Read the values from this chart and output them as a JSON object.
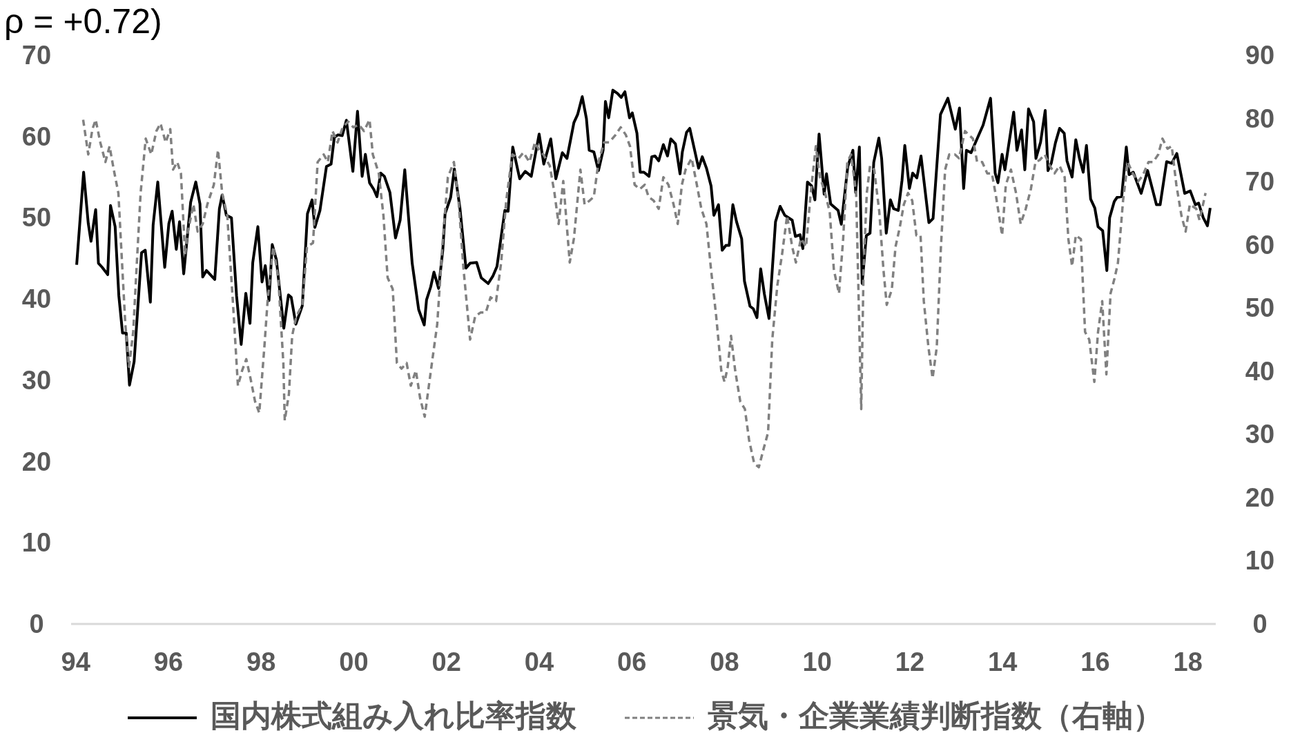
{
  "chart_data": {
    "type": "line",
    "title": "ρ = +0.72)",
    "series": [
      {
        "name": "国内株式組み入れ比率指数",
        "color": "#000000",
        "line_style": "solid",
        "x": [
          1994.02,
          1994.17,
          1994.27,
          1994.33,
          1994.43,
          1994.49,
          1994.57,
          1994.69,
          1994.75,
          1994.85,
          1994.93,
          1995.01,
          1995.09,
          1995.16,
          1995.26,
          1995.42,
          1995.5,
          1995.61,
          1995.67,
          1995.77,
          1995.92,
          1996.01,
          1996.08,
          1996.17,
          1996.24,
          1996.33,
          1996.48,
          1996.59,
          1996.68,
          1996.74,
          1996.82,
          1997.0,
          1997.1,
          1997.16,
          1997.25,
          1997.36,
          1997.47,
          1997.57,
          1997.67,
          1997.76,
          1997.82,
          1997.93,
          1998.02,
          1998.09,
          1998.17,
          1998.24,
          1998.33,
          1998.49,
          1998.59,
          1998.65,
          1998.75,
          1998.89,
          1999.0,
          1999.1,
          1999.16,
          1999.27,
          1999.41,
          1999.51,
          1999.58,
          1999.66,
          1999.75,
          1999.84,
          1999.98,
          2000.08,
          2000.18,
          2000.25,
          2000.34,
          2000.43,
          2000.5,
          2000.58,
          2000.66,
          2000.78,
          2000.9,
          2001.0,
          2001.1,
          2001.26,
          2001.4,
          2001.52,
          2001.57,
          2001.66,
          2001.73,
          2001.83,
          2001.92,
          2001.97,
          2002.09,
          2002.17,
          2002.29,
          2002.42,
          2002.51,
          2002.65,
          2002.75,
          2002.9,
          2003.0,
          2003.09,
          2003.26,
          2003.33,
          2003.43,
          2003.58,
          2003.7,
          2003.83,
          2004.0,
          2004.1,
          2004.25,
          2004.36,
          2004.5,
          2004.6,
          2004.75,
          2004.83,
          2004.93,
          2005.02,
          2005.08,
          2005.18,
          2005.28,
          2005.38,
          2005.43,
          2005.5,
          2005.59,
          2005.69,
          2005.77,
          2005.85,
          2005.95,
          2006.01,
          2006.11,
          2006.18,
          2006.26,
          2006.37,
          2006.43,
          2006.5,
          2006.58,
          2006.68,
          2006.77,
          2006.84,
          2006.94,
          2007.04,
          2007.09,
          2007.18,
          2007.25,
          2007.44,
          2007.52,
          2007.61,
          2007.71,
          2007.77,
          2007.87,
          2007.95,
          2008.03,
          2008.1,
          2008.18,
          2008.26,
          2008.37,
          2008.43,
          2008.55,
          2008.62,
          2008.7,
          2008.78,
          2008.86,
          2008.96,
          2009.1,
          2009.2,
          2009.3,
          2009.46,
          2009.53,
          2009.63,
          2009.69,
          2009.79,
          2009.88,
          2009.95,
          2010.04,
          2010.15,
          2010.2,
          2010.29,
          2010.45,
          2010.52,
          2010.66,
          2010.77,
          2010.83,
          2010.91,
          2010.97,
          2011.06,
          2011.14,
          2011.22,
          2011.33,
          2011.39,
          2011.49,
          2011.58,
          2011.65,
          2011.75,
          2011.83,
          2011.89,
          2011.99,
          2012.06,
          2012.15,
          2012.24,
          2012.41,
          2012.5,
          2012.66,
          2012.82,
          2012.98,
          2013.07,
          2013.16,
          2013.22,
          2013.32,
          2013.48,
          2013.58,
          2013.74,
          2013.84,
          2013.9,
          2013.99,
          2014.05,
          2014.24,
          2014.31,
          2014.41,
          2014.48,
          2014.56,
          2014.67,
          2014.72,
          2014.82,
          2014.92,
          2014.98,
          2015.05,
          2015.14,
          2015.23,
          2015.33,
          2015.39,
          2015.5,
          2015.58,
          2015.66,
          2015.74,
          2015.81,
          2015.9,
          2015.99,
          2016.06,
          2016.16,
          2016.25,
          2016.31,
          2016.41,
          2016.47,
          2016.57,
          2016.67,
          2016.73,
          2016.82,
          2016.99,
          2017.13,
          2017.32,
          2017.4,
          2017.54,
          2017.65,
          2017.76,
          2017.93,
          2018.05,
          2018.16,
          2018.23,
          2018.33,
          2018.42,
          2018.48
        ],
        "values": [
          44.2,
          55.6,
          49.3,
          47.1,
          51.0,
          44.4,
          43.9,
          43.0,
          51.5,
          48.9,
          40.4,
          35.8,
          35.8,
          29.4,
          32.3,
          45.7,
          46.0,
          39.6,
          49.1,
          54.4,
          43.9,
          49.3,
          50.8,
          46.1,
          49.5,
          43.1,
          51.9,
          54.4,
          51.7,
          42.7,
          43.5,
          42.4,
          51.1,
          52.8,
          50.3,
          50.0,
          40.4,
          34.4,
          40.7,
          37.0,
          44.5,
          48.9,
          42.1,
          44.1,
          39.8,
          46.7,
          44.8,
          36.4,
          40.5,
          40.2,
          36.9,
          39.2,
          50.5,
          52.2,
          48.8,
          50.9,
          56.3,
          56.6,
          59.9,
          60.2,
          60.1,
          62.0,
          55.7,
          63.1,
          55.1,
          57.8,
          54.3,
          53.5,
          52.6,
          55.5,
          55.1,
          53.1,
          47.5,
          49.7,
          55.9,
          44.4,
          38.7,
          36.8,
          39.9,
          41.5,
          43.3,
          41.3,
          46.0,
          50.5,
          52.5,
          56.0,
          51.2,
          43.8,
          44.4,
          44.5,
          42.6,
          41.9,
          42.8,
          44.0,
          50.9,
          50.8,
          58.7,
          54.8,
          55.7,
          55.1,
          60.3,
          56.6,
          59.7,
          54.8,
          58.0,
          57.3,
          61.7,
          62.7,
          64.9,
          62.2,
          58.3,
          58.1,
          55.8,
          58.3,
          64.3,
          62.3,
          65.7,
          65.3,
          64.8,
          65.5,
          62.3,
          62.9,
          60.4,
          55.6,
          55.6,
          55.1,
          57.5,
          57.6,
          57.0,
          59.0,
          57.6,
          59.7,
          59.1,
          55.4,
          58.1,
          60.5,
          61.0,
          56.1,
          57.5,
          56.1,
          53.9,
          50.3,
          51.6,
          46.0,
          46.6,
          46.6,
          51.6,
          49.5,
          47.4,
          42.2,
          39.1,
          38.8,
          37.7,
          43.7,
          40.6,
          37.6,
          49.5,
          51.4,
          50.3,
          49.7,
          47.7,
          47.9,
          46.2,
          54.4,
          53.9,
          52.2,
          60.3,
          52.9,
          55.4,
          51.7,
          50.9,
          49.2,
          56.3,
          58.3,
          53.1,
          58.7,
          41.9,
          47.8,
          48.1,
          56.8,
          59.8,
          57.3,
          48.1,
          52.2,
          51.1,
          50.9,
          54.6,
          58.9,
          53.6,
          55.5,
          54.9,
          57.6,
          49.4,
          49.9,
          62.7,
          64.7,
          60.9,
          63.5,
          53.6,
          58.3,
          58.0,
          60.1,
          61.4,
          64.7,
          55.5,
          54.3,
          57.8,
          55.9,
          63.0,
          58.3,
          60.8,
          55.9,
          63.4,
          61.8,
          57.3,
          59.3,
          63.2,
          55.8,
          56.7,
          59.2,
          61.0,
          60.4,
          57.0,
          55.0,
          59.6,
          57.3,
          55.6,
          58.9,
          52.3,
          51.2,
          48.9,
          48.4,
          43.5,
          50.0,
          52.0,
          52.5,
          52.6,
          58.7,
          55.3,
          55.6,
          53.0,
          55.8,
          51.6,
          51.6,
          56.9,
          56.7,
          57.9,
          53.0,
          53.3,
          51.6,
          51.8,
          50.0,
          49.0,
          51.2
        ]
      },
      {
        "name": "景気・企業業績判断指数（右軸）",
        "color": "#808080",
        "line_style": "dashed",
        "axis": "y2",
        "x": [
          1994.16,
          1994.27,
          1994.36,
          1994.43,
          1994.53,
          1994.64,
          1994.73,
          1994.82,
          1994.92,
          1994.99,
          1995.07,
          1995.15,
          1995.24,
          1995.31,
          1995.4,
          1995.51,
          1995.63,
          1995.74,
          1995.83,
          1995.94,
          1996.04,
          1996.1,
          1996.19,
          1996.27,
          1996.36,
          1996.42,
          1996.54,
          1996.63,
          1996.74,
          1996.84,
          1996.98,
          1997.07,
          1997.16,
          1997.27,
          1997.39,
          1997.5,
          1997.59,
          1997.68,
          1997.77,
          1997.87,
          1997.96,
          1998.07,
          1998.14,
          1998.26,
          1998.37,
          1998.48,
          1998.51,
          1998.6,
          1998.67,
          1998.76,
          1998.89,
          1998.99,
          1999.12,
          1999.22,
          1999.35,
          1999.44,
          1999.54,
          1999.65,
          1999.76,
          1999.88,
          1999.99,
          2000.11,
          2000.22,
          2000.34,
          2000.41,
          2000.54,
          2000.64,
          2000.73,
          2000.84,
          2000.93,
          2001.03,
          2001.14,
          2001.23,
          2001.34,
          2001.43,
          2001.53,
          2001.62,
          2001.71,
          2001.8,
          2001.91,
          2002.03,
          2002.16,
          2002.26,
          2002.37,
          2002.51,
          2002.62,
          2002.74,
          2002.85,
          2002.95,
          2003.07,
          2003.18,
          2003.29,
          2003.42,
          2003.56,
          2003.66,
          2003.79,
          2003.91,
          2004.0,
          2004.09,
          2004.23,
          2004.33,
          2004.42,
          2004.52,
          2004.66,
          2004.75,
          2004.89,
          2004.98,
          2005.09,
          2005.18,
          2005.28,
          2005.4,
          2005.51,
          2005.65,
          2005.76,
          2005.87,
          2005.96,
          2006.06,
          2006.17,
          2006.28,
          2006.36,
          2006.47,
          2006.58,
          2006.68,
          2006.79,
          2006.9,
          2006.99,
          2007.08,
          2007.16,
          2007.29,
          2007.39,
          2007.5,
          2007.61,
          2007.71,
          2007.82,
          2007.93,
          2008.0,
          2008.07,
          2008.14,
          2008.23,
          2008.34,
          2008.44,
          2008.53,
          2008.64,
          2008.74,
          2008.85,
          2008.94,
          2009.03,
          2009.14,
          2009.24,
          2009.35,
          2009.46,
          2009.54,
          2009.65,
          2009.76,
          2009.86,
          2009.97,
          2010.06,
          2010.17,
          2010.27,
          2010.36,
          2010.47,
          2010.56,
          2010.65,
          2010.73,
          2010.84,
          2010.95,
          2011.0,
          2011.07,
          2011.14,
          2011.23,
          2011.34,
          2011.43,
          2011.5,
          2011.61,
          2011.69,
          2011.78,
          2011.87,
          2011.96,
          2012.05,
          2012.14,
          2012.23,
          2012.3,
          2012.4,
          2012.49,
          2012.58,
          2012.67,
          2012.76,
          2012.85,
          2012.97,
          2013.06,
          2013.19,
          2013.27,
          2013.36,
          2013.45,
          2013.56,
          2013.67,
          2013.77,
          2013.86,
          2013.99,
          2014.07,
          2014.18,
          2014.29,
          2014.39,
          2014.5,
          2014.61,
          2014.71,
          2014.8,
          2014.91,
          2015.02,
          2015.12,
          2015.23,
          2015.34,
          2015.42,
          2015.5,
          2015.58,
          2015.69,
          2015.78,
          2015.87,
          2015.98,
          2016.06,
          2016.15,
          2016.24,
          2016.33,
          2016.42,
          2016.49,
          2016.6,
          2016.7,
          2016.81,
          2016.92,
          2017.02,
          2017.15,
          2017.25,
          2017.36,
          2017.45,
          2017.56,
          2017.65,
          2017.75,
          2017.86,
          2017.95,
          2018.04,
          2018.18,
          2018.25,
          2018.38
        ],
        "values": [
          79.8,
          74.3,
          78.3,
          79.8,
          76.2,
          73.1,
          75.6,
          71.9,
          68.2,
          58.4,
          47.4,
          40.7,
          46.2,
          56,
          68.2,
          76.8,
          74.3,
          78,
          79.2,
          76.2,
          78.3,
          71.9,
          73.1,
          71.3,
          58.4,
          62.1,
          66.4,
          62.1,
          63.3,
          66.4,
          69.5,
          75,
          68.2,
          64.6,
          51.1,
          37.7,
          40.1,
          41.9,
          38.9,
          35.2,
          33.4,
          43.8,
          51.1,
          59.7,
          54.8,
          41.3,
          32.2,
          36.4,
          45.6,
          48.7,
          50.5,
          59.7,
          60.3,
          73.1,
          74.3,
          73.1,
          78,
          76.2,
          78.6,
          79.5,
          78.6,
          79,
          78,
          79.8,
          74.3,
          71.3,
          64.6,
          54.8,
          53,
          41.3,
          40.4,
          41.3,
          37.7,
          40.1,
          35.8,
          32.8,
          37.7,
          42.6,
          47.4,
          59.7,
          70.7,
          73.1,
          67,
          56,
          45,
          48.7,
          49.3,
          49.3,
          51.7,
          51.1,
          57.2,
          67,
          74.3,
          73.7,
          74.6,
          73.1,
          76.2,
          75,
          74.3,
          72.5,
          68.2,
          63.3,
          70.1,
          57.2,
          61,
          71.9,
          66.4,
          67,
          67.6,
          73.1,
          76.2,
          76.2,
          77.4,
          78.6,
          77.4,
          75.6,
          69.5,
          68.8,
          69.5,
          67.6,
          67,
          65.7,
          70.7,
          69.5,
          66.4,
          63.3,
          69.5,
          71.9,
          73.7,
          70,
          65.7,
          63.3,
          56,
          48.7,
          40.1,
          38.3,
          40.7,
          45.6,
          40.1,
          35.2,
          34,
          29.1,
          25.4,
          24.8,
          27.9,
          30.3,
          45,
          53.6,
          58.4,
          64.6,
          59.7,
          57.2,
          61,
          59.7,
          68.2,
          75.6,
          70.7,
          68.2,
          65.2,
          56,
          52.3,
          60.9,
          73.1,
          74.3,
          68.2,
          34,
          56,
          68.2,
          72.5,
          71.9,
          65.2,
          56,
          50.5,
          52.9,
          59.7,
          62.7,
          66.4,
          68.2,
          67,
          61.5,
          61.5,
          51.1,
          43.8,
          38.9,
          43.8,
          59.7,
          71.9,
          74.3,
          74.3,
          73.7,
          78,
          77.4,
          76.8,
          73.1,
          73.1,
          71.3,
          71.3,
          67.6,
          61.5,
          69.5,
          71.9,
          68.2,
          63.3,
          65.7,
          68.8,
          73.1,
          73.4,
          74.3,
          72.5,
          71.3,
          72.5,
          70.7,
          60.9,
          56.6,
          61.5,
          60.9,
          46.2,
          45,
          38.3,
          46.2,
          51.1,
          39.5,
          52.3,
          54.8,
          57.2,
          67,
          73.1,
          71.3,
          70,
          70.9,
          73.1,
          73.1,
          74.3,
          76.8,
          75.2,
          75.6,
          69.5,
          64.6,
          62.1,
          66.4,
          65.7,
          63.9,
          68.2
        ]
      }
    ],
    "xlim": [
      1993.9,
      2018.6
    ],
    "xticks": [
      {
        "value": 1994,
        "label": "94"
      },
      {
        "value": 1996,
        "label": "96"
      },
      {
        "value": 1998,
        "label": "98"
      },
      {
        "value": 2000,
        "label": "00"
      },
      {
        "value": 2002,
        "label": "02"
      },
      {
        "value": 2004,
        "label": "04"
      },
      {
        "value": 2006,
        "label": "06"
      },
      {
        "value": 2008,
        "label": "08"
      },
      {
        "value": 2010,
        "label": "10"
      },
      {
        "value": 2012,
        "label": "12"
      },
      {
        "value": 2014,
        "label": "14"
      },
      {
        "value": 2016,
        "label": "16"
      },
      {
        "value": 2018,
        "label": "18"
      }
    ],
    "ylim": [
      0,
      70
    ],
    "yticks": [
      0,
      10,
      20,
      30,
      40,
      50,
      60,
      70
    ],
    "y2lim": [
      0,
      90
    ],
    "y2ticks": [
      0,
      10,
      20,
      30,
      40,
      50,
      60,
      70,
      80,
      90
    ],
    "grid": false,
    "legend": "bottom"
  }
}
